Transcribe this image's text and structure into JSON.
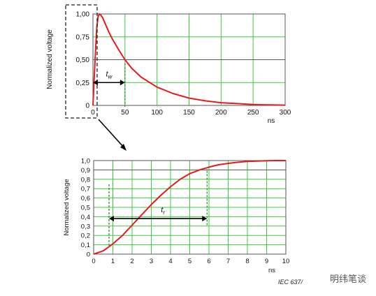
{
  "colors": {
    "curve": "#e8191c",
    "grid": "#3ccc3c",
    "dark": "#555555",
    "annot": "#228822"
  },
  "chart_data": [
    {
      "type": "line",
      "ylabel": "Normalized voltage",
      "xunit": "ns",
      "xlim": [
        0,
        300
      ],
      "ylim": [
        0,
        1
      ],
      "xticks": [
        0,
        50,
        100,
        150,
        200,
        250,
        300
      ],
      "xtick_labels": [
        "0",
        "50",
        "100",
        "150",
        "200",
        "250",
        "300"
      ],
      "yticks": [
        0,
        0.25,
        0.5,
        0.75,
        1.0
      ],
      "ytick_labels": [
        "0",
        "0,25",
        "0,50",
        "0,75",
        "1,00"
      ],
      "grid": true,
      "annotation": {
        "label": "t",
        "sub": "w",
        "x_start": 0,
        "x_end": 50,
        "y": 0.25
      },
      "series": [
        {
          "x": [
            0,
            2,
            4,
            6,
            8,
            10,
            12,
            15,
            20,
            25,
            30,
            40,
            50,
            60,
            75,
            100,
            125,
            150,
            175,
            200,
            225,
            250,
            275,
            300
          ],
          "y": [
            0,
            0.3,
            0.6,
            0.85,
            0.97,
            1.0,
            0.99,
            0.96,
            0.88,
            0.8,
            0.73,
            0.61,
            0.5,
            0.41,
            0.31,
            0.2,
            0.13,
            0.08,
            0.05,
            0.03,
            0.02,
            0.01,
            0.005,
            0.003
          ]
        }
      ]
    },
    {
      "type": "line",
      "ylabel": "Normalized voltage",
      "xunit": "ns",
      "xlim": [
        0,
        10
      ],
      "ylim": [
        0,
        1
      ],
      "xticks": [
        0,
        1,
        2,
        3,
        4,
        5,
        6,
        7,
        8,
        9,
        10
      ],
      "xtick_labels": [
        "0",
        "1",
        "2",
        "3",
        "4",
        "5",
        "6",
        "7",
        "8",
        "9",
        "10"
      ],
      "yticks": [
        0,
        0.1,
        0.2,
        0.3,
        0.4,
        0.5,
        0.6,
        0.7,
        0.8,
        0.9,
        1.0
      ],
      "ytick_labels": [
        "0",
        "0,1",
        "0,2",
        "0,3",
        "0,4",
        "0,5",
        "0,6",
        "0,7",
        "0,8",
        "0,9",
        "1,0"
      ],
      "grid": true,
      "annotation": {
        "label": "t",
        "sub": "r",
        "x_start": 0.8,
        "x_end": 5.9,
        "y": 0.38
      },
      "series": [
        {
          "x": [
            0,
            0.5,
            1,
            1.5,
            2,
            2.5,
            3,
            3.5,
            4,
            4.5,
            5,
            5.5,
            6,
            6.5,
            7,
            7.5,
            8,
            8.5,
            9,
            9.5,
            10
          ],
          "y": [
            0,
            0.035,
            0.11,
            0.2,
            0.31,
            0.42,
            0.53,
            0.63,
            0.72,
            0.8,
            0.86,
            0.9,
            0.93,
            0.955,
            0.97,
            0.982,
            0.99,
            0.995,
            0.998,
            1.0,
            1.0
          ]
        }
      ]
    }
  ],
  "footer": {
    "iec_label": "IEC  637/",
    "watermark": "明纬笔谈"
  }
}
